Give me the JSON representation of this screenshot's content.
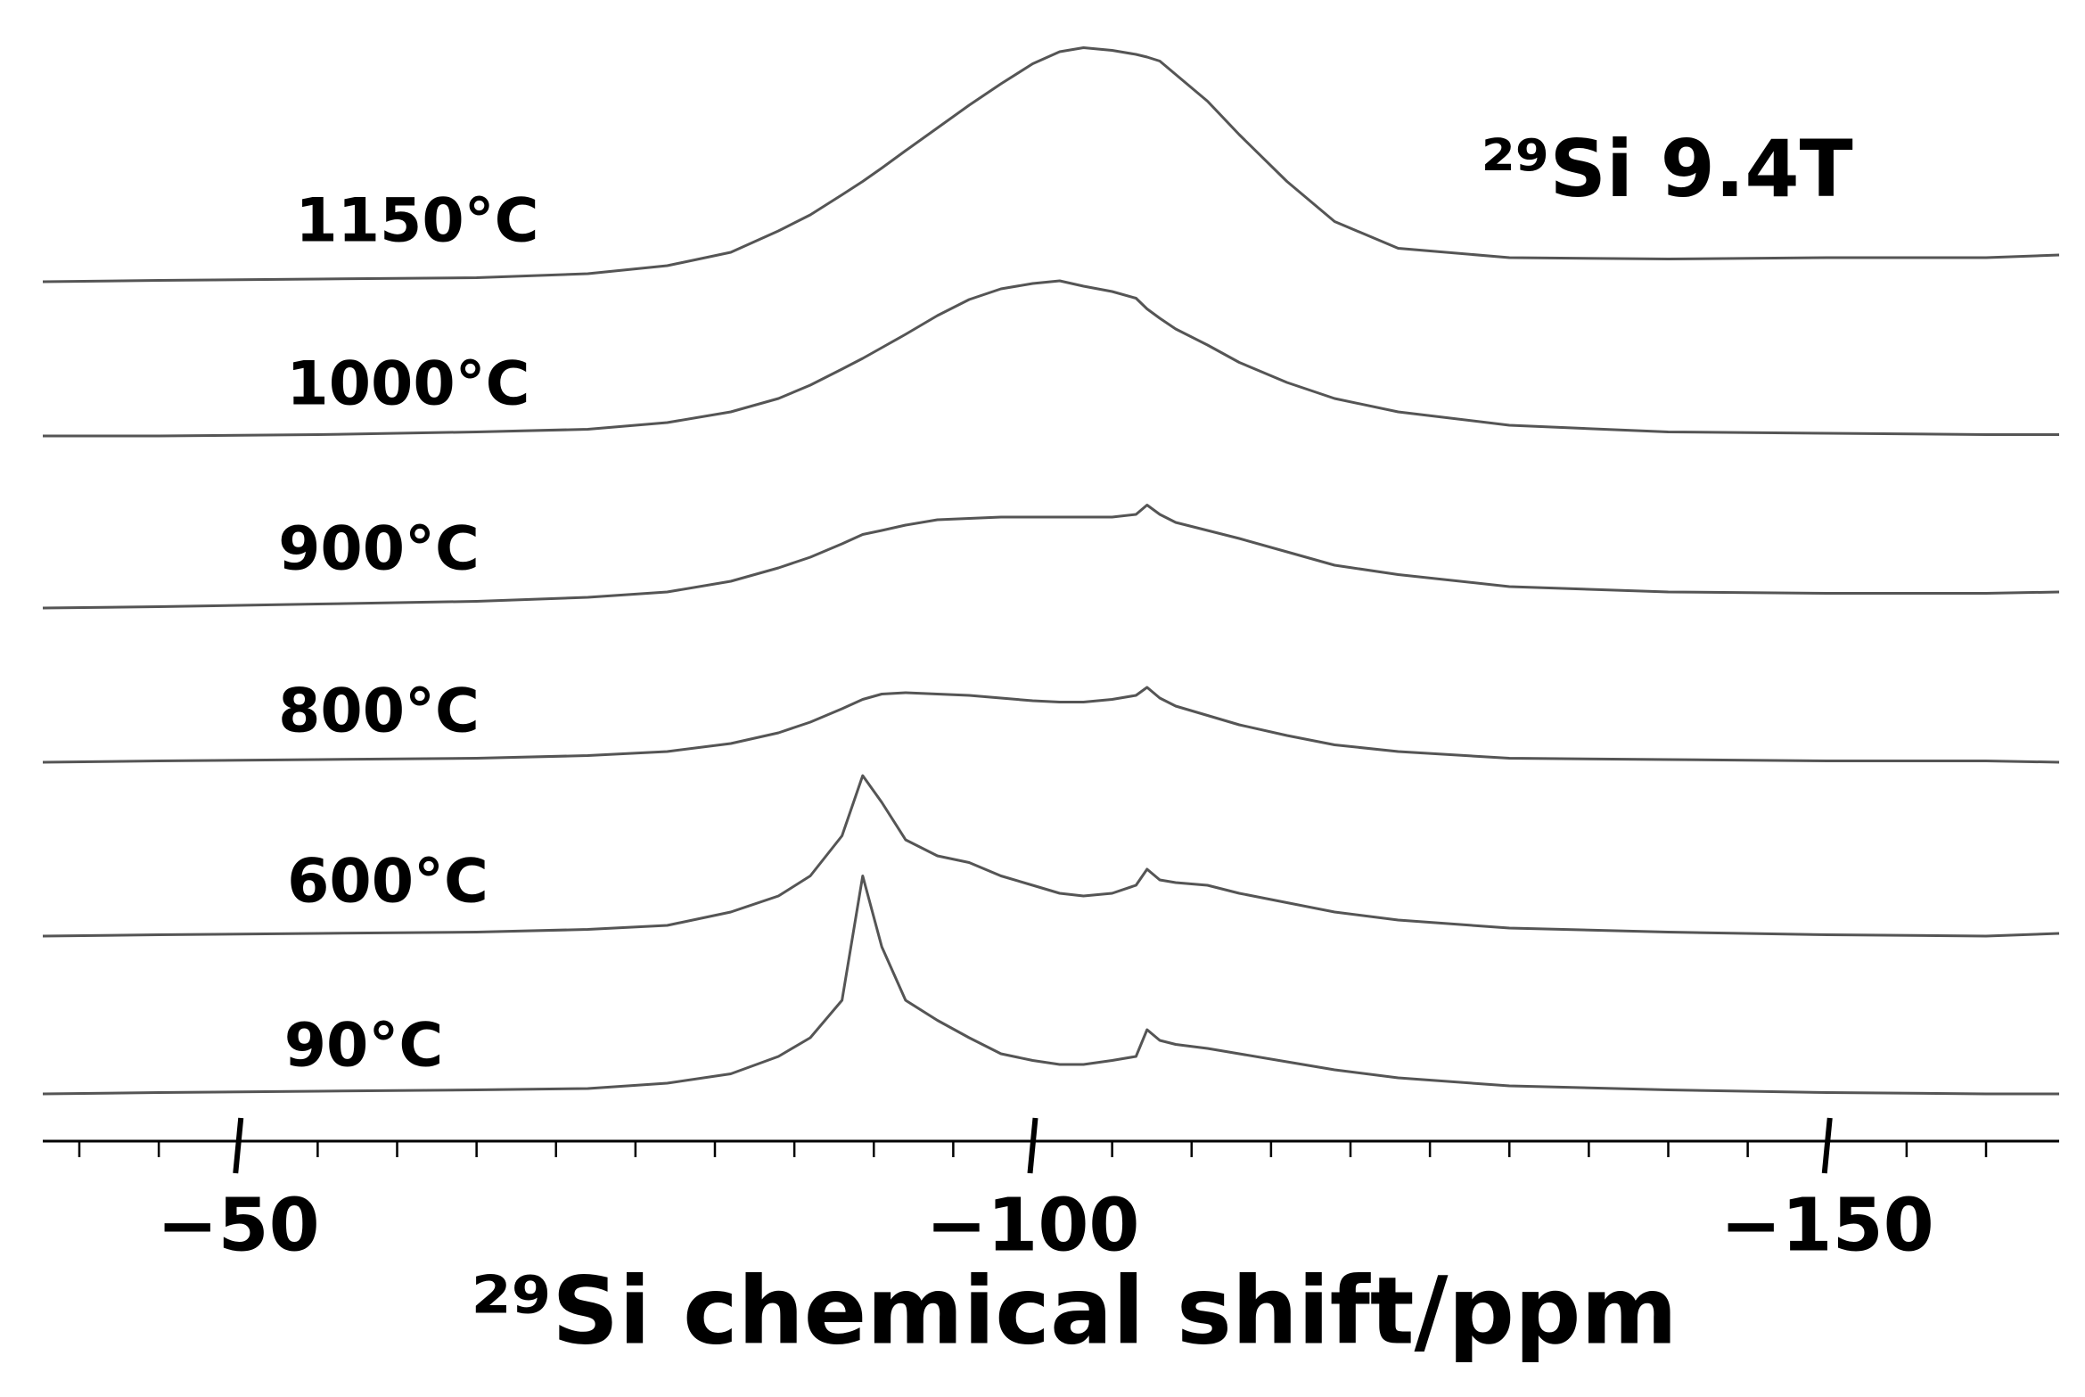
{
  "chart_data": {
    "type": "stacked-line",
    "annotation": "²⁹Si   9.4T",
    "x_label": "²⁹Si chemical shift/ppm",
    "xlim": [
      -37.7,
      -164.6
    ],
    "xticks": [
      {
        "value": -50,
        "label": "−50"
      },
      {
        "value": -100,
        "label": "−100"
      },
      {
        "value": -150,
        "label": "−150"
      }
    ],
    "xminorticks": [
      -40,
      -45,
      -55,
      -60,
      -65,
      -70,
      -75,
      -80,
      -85,
      -90,
      -95,
      -105,
      -110,
      -115,
      -120,
      -125,
      -130,
      -135,
      -140,
      -145,
      -155,
      -160
    ],
    "x": [
      -37.7,
      -45,
      -55,
      -65,
      -72,
      -77,
      -81,
      -84,
      -86,
      -88,
      -89.3,
      -90.5,
      -92,
      -94,
      -96,
      -98,
      -100,
      -101.7,
      -103.2,
      -105,
      -106.5,
      -107.2,
      -108,
      -109,
      -111,
      -113,
      -116,
      -119,
      -123,
      -130,
      -140,
      -150,
      -160,
      -164.6
    ],
    "series": [
      {
        "name": "1150°C",
        "color": "#555555",
        "values": [
          0,
          1,
          2,
          3,
          6,
          12,
          22,
          38,
          50,
          65,
          75,
          85,
          98,
          115,
          132,
          148,
          163,
          172,
          175,
          173,
          170,
          168,
          165,
          155,
          135,
          110,
          75,
          45,
          25,
          18,
          17,
          18,
          18,
          20
        ]
      },
      {
        "name": "1000°C",
        "color": "#555555",
        "values": [
          0,
          0,
          1,
          3,
          5,
          10,
          18,
          28,
          38,
          50,
          58,
          66,
          76,
          90,
          102,
          110,
          114,
          116,
          112,
          108,
          103,
          95,
          88,
          80,
          68,
          55,
          40,
          28,
          18,
          8,
          3,
          2,
          1,
          1
        ]
      },
      {
        "name": "900°C",
        "color": "#555555",
        "values": [
          0,
          1,
          3,
          5,
          8,
          12,
          20,
          30,
          38,
          48,
          55,
          58,
          62,
          66,
          67,
          68,
          68,
          68,
          68,
          68,
          70,
          77,
          70,
          64,
          58,
          52,
          42,
          32,
          25,
          16,
          12,
          11,
          11,
          12
        ]
      },
      {
        "name": "800°C",
        "color": "#555555",
        "values": [
          0,
          1,
          2,
          3,
          5,
          8,
          14,
          22,
          30,
          40,
          47,
          51,
          52,
          51,
          50,
          48,
          46,
          45,
          45,
          47,
          50,
          56,
          48,
          42,
          35,
          28,
          20,
          13,
          8,
          3,
          2,
          1,
          1,
          0
        ]
      },
      {
        "name": "600°C",
        "color": "#555555",
        "values": [
          0,
          1,
          2,
          3,
          5,
          8,
          18,
          30,
          45,
          75,
          120,
          100,
          72,
          60,
          55,
          45,
          38,
          32,
          30,
          32,
          38,
          50,
          42,
          40,
          38,
          32,
          25,
          18,
          12,
          6,
          3,
          1,
          0,
          2
        ]
      },
      {
        "name": "90°C",
        "color": "#555555",
        "values": [
          0,
          1,
          2,
          3,
          4,
          8,
          15,
          28,
          42,
          70,
          163,
          110,
          70,
          55,
          42,
          30,
          25,
          22,
          22,
          25,
          28,
          48,
          40,
          37,
          34,
          30,
          24,
          18,
          12,
          6,
          3,
          1,
          0,
          0
        ]
      }
    ]
  }
}
